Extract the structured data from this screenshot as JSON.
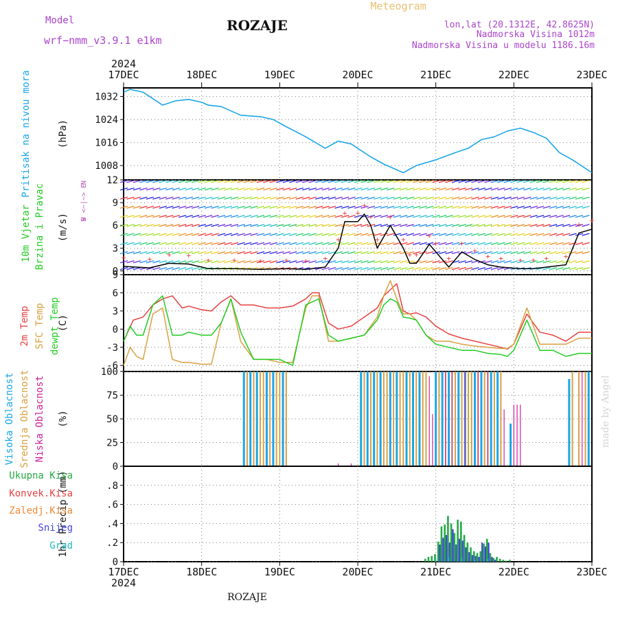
{
  "header": {
    "model_label": "Model",
    "model_name": "wrf−nmm_v3.9.1  e1km",
    "station": "ROZAJE",
    "meteogram_label": "Meteogram",
    "lonlat": "lon,lat (20.1312E, 42.8625N)",
    "elevation": "Nadmorska Visina 1012m",
    "model_elevation": "Nadmorska Visina u modelu 1186.16m"
  },
  "footer": {
    "station": "ROZAJE",
    "credit": "made by Angel"
  },
  "colors": {
    "pressure": "#1aa6e8",
    "wind_title": "#22cc22",
    "wind_dir": "#bb55bb",
    "temp_2m": "#e84040",
    "temp_sfc": "#d8a040",
    "dewpoint": "#22cc22",
    "cloud_high": "#1aa6e8",
    "cloud_mid": "#d8a040",
    "cloud_low": "#cc2299",
    "precip_total": "#22aa44",
    "precip_conv": "#e84040",
    "precip_frozen": "#ee8833",
    "precip_snow": "#4444dd",
    "precip_graupel": "#22bbbb",
    "header_model": "#aa44cc",
    "header_meteogram": "#e8c070"
  },
  "chart_data": [
    {
      "type": "line",
      "id": "pressure",
      "ylabel": "(hPa)",
      "yaxis_title": [
        "Pritisak na nivou mora"
      ],
      "ylim": [
        1003,
        1035
      ],
      "yticks": [
        1008,
        1016,
        1024,
        1032
      ],
      "x_range": [
        0,
        144
      ],
      "x": [
        0,
        2,
        6,
        12,
        16,
        20,
        24,
        26,
        30,
        36,
        42,
        46,
        50,
        56,
        62,
        66,
        70,
        76,
        80,
        86,
        90,
        96,
        102,
        106,
        110,
        114,
        118,
        122,
        126,
        130,
        134,
        138,
        144
      ],
      "values": [
        1033.5,
        1034.5,
        1033.5,
        1029.0,
        1030.5,
        1031.0,
        1030.0,
        1029.0,
        1028.5,
        1025.5,
        1025.0,
        1024.0,
        1021.5,
        1018.0,
        1014.0,
        1016.5,
        1015.5,
        1011.0,
        1008.5,
        1005.5,
        1008.0,
        1010.0,
        1012.5,
        1014.0,
        1017.0,
        1018.0,
        1020.0,
        1021.0,
        1019.5,
        1017.5,
        1012.5,
        1010.0,
        1005.5
      ]
    },
    {
      "type": "line",
      "id": "wind",
      "ylabel": "(m/s)",
      "yaxis_title": [
        "10m Vjetar",
        "Brzina i Pravac"
      ],
      "direction_legend": [
        "N",
        "W <−|−> E",
        "S"
      ],
      "ylim": [
        -0.5,
        12
      ],
      "yticks": [
        0,
        3,
        6,
        9,
        12
      ],
      "x_range": [
        0,
        144
      ],
      "series": [
        {
          "name": "",
          "x": [
            0,
            8,
            14,
            20,
            26,
            34,
            42,
            50,
            56,
            62,
            66,
            68,
            72,
            74,
            76,
            78,
            82,
            86,
            88,
            90,
            94,
            96,
            100,
            104,
            108,
            112,
            116,
            122,
            126,
            130,
            136,
            140,
            144
          ],
          "values": [
            0.6,
            0.4,
            1.0,
            0.9,
            0.3,
            0.3,
            0.2,
            0.3,
            0.2,
            0.5,
            3.0,
            6.5,
            6.5,
            7.5,
            6.0,
            3.0,
            6.0,
            3.0,
            1.0,
            1.0,
            3.5,
            2.5,
            0.5,
            2.5,
            1.5,
            0.8,
            0.5,
            0.3,
            0.3,
            0.5,
            0.8,
            5.0,
            5.5
          ]
        }
      ]
    },
    {
      "type": "line",
      "id": "temperature",
      "ylabel": "(C)",
      "yaxis_title": [
        "2m Temp",
        "SFC Temp",
        "dewpt Temp"
      ],
      "ylim": [
        -7,
        9
      ],
      "yticks": [
        -6,
        -3,
        0,
        3,
        6,
        9
      ],
      "x_range": [
        0,
        144
      ],
      "series": [
        {
          "name": "2m Temp",
          "x": [
            0,
            3,
            6,
            9,
            12,
            15,
            18,
            20,
            24,
            27,
            30,
            33,
            36,
            40,
            44,
            48,
            52,
            56,
            58,
            60,
            63,
            66,
            70,
            74,
            78,
            80,
            82,
            84,
            86,
            88,
            90,
            93,
            96,
            100,
            104,
            108,
            112,
            116,
            118,
            120,
            124,
            128,
            132,
            136,
            140,
            142,
            144
          ],
          "values": [
            -2,
            1.5,
            2.0,
            4.0,
            5.0,
            5.5,
            3.5,
            3.8,
            3.2,
            3.0,
            4.5,
            5.5,
            4.0,
            4.0,
            3.5,
            3.5,
            3.8,
            5.0,
            6.0,
            6.0,
            1.0,
            0.0,
            0.5,
            2.0,
            3.5,
            5.5,
            6.5,
            7.5,
            3.0,
            2.5,
            2.7,
            2.0,
            0.5,
            -0.8,
            -1.5,
            -2.0,
            -2.5,
            -3.0,
            -3.3,
            -2.5,
            2.5,
            -0.5,
            -1.0,
            -2.0,
            -0.5,
            -0.5,
            -0.5
          ]
        },
        {
          "name": "SFC Temp",
          "x": [
            0,
            2,
            4,
            6,
            9,
            12,
            15,
            18,
            20,
            24,
            27,
            30,
            33,
            36,
            40,
            44,
            48,
            52,
            56,
            58,
            60,
            63,
            66,
            70,
            74,
            78,
            80,
            82,
            84,
            86,
            88,
            90,
            93,
            96,
            100,
            104,
            108,
            112,
            116,
            118,
            120,
            124,
            128,
            132,
            136,
            140,
            142,
            144
          ],
          "values": [
            -6,
            -3.0,
            -4.5,
            -5.0,
            2.5,
            3.5,
            -5.0,
            -5.5,
            -5.5,
            -5.8,
            -5.8,
            1.0,
            5.0,
            -2.0,
            -5.0,
            -5.0,
            -5.5,
            -5.5,
            3.5,
            5.5,
            5.5,
            -2.0,
            -2.0,
            -1.5,
            -1.0,
            2.0,
            5.5,
            8.0,
            5.0,
            2.5,
            2.5,
            1.5,
            -1.0,
            -2.0,
            -2.0,
            -2.5,
            -2.8,
            -3.0,
            -3.2,
            -3.2,
            -2.5,
            3.5,
            -2.5,
            -2.5,
            -2.5,
            -1.5,
            -1.5,
            -1.5
          ]
        },
        {
          "name": "dewpt Temp",
          "x": [
            0,
            2,
            4,
            6,
            9,
            12,
            15,
            18,
            20,
            24,
            27,
            30,
            33,
            36,
            40,
            44,
            48,
            52,
            56,
            58,
            60,
            63,
            66,
            70,
            74,
            78,
            80,
            82,
            84,
            86,
            88,
            90,
            93,
            96,
            100,
            104,
            108,
            112,
            116,
            118,
            120,
            124,
            128,
            132,
            136,
            140,
            142,
            144
          ],
          "values": [
            -2,
            0.5,
            -1.0,
            -1.0,
            4.0,
            5.5,
            -1.0,
            -1.0,
            -0.5,
            -1.0,
            -1.0,
            1.0,
            5.0,
            -0.5,
            -5.0,
            -5.0,
            -5.0,
            -6.0,
            4.0,
            4.5,
            5.0,
            -1.0,
            -2.0,
            -1.5,
            -1.0,
            1.5,
            4.0,
            5.0,
            4.5,
            2.0,
            1.8,
            1.5,
            -1.0,
            -2.5,
            -3.0,
            -3.5,
            -3.5,
            -4.0,
            -4.2,
            -4.5,
            -3.5,
            1.5,
            -3.5,
            -3.5,
            -4.5,
            -4.0,
            -4.0,
            -4.0
          ]
        }
      ]
    },
    {
      "type": "bar",
      "id": "clouds",
      "ylabel": "(%)",
      "yaxis_title": [
        "Visoka Oblacnost",
        "Srednja Oblacnost",
        "Niska Oblacnost"
      ],
      "ylim": [
        0,
        100
      ],
      "yticks": [
        0,
        25,
        50,
        75,
        100
      ],
      "x_range": [
        0,
        144
      ],
      "series": [
        {
          "name": "Visoka Oblacnost",
          "x": [
            37,
            39,
            41,
            44,
            46,
            49,
            73,
            75,
            77,
            79,
            82,
            84,
            87,
            89,
            91,
            96,
            98,
            100,
            103,
            105,
            108,
            110,
            113,
            115,
            119,
            137,
            143
          ],
          "values": [
            100,
            100,
            100,
            100,
            100,
            100,
            100,
            100,
            100,
            100,
            100,
            100,
            100,
            100,
            100,
            100,
            100,
            100,
            100,
            100,
            100,
            100,
            100,
            100,
            45,
            92,
            100
          ]
        },
        {
          "name": "Srednja Oblacnost",
          "x": [
            38,
            40,
            42,
            43,
            45,
            47,
            48,
            50,
            74,
            76,
            78,
            80,
            81,
            83,
            85,
            86,
            88,
            90,
            92,
            93,
            97,
            99,
            101,
            102,
            104,
            106,
            107,
            109,
            111,
            112,
            114,
            116,
            138,
            140,
            142
          ],
          "values": [
            100,
            100,
            100,
            100,
            100,
            100,
            100,
            100,
            100,
            100,
            100,
            100,
            100,
            100,
            100,
            100,
            100,
            100,
            100,
            100,
            100,
            100,
            100,
            100,
            100,
            100,
            100,
            100,
            100,
            100,
            100,
            100,
            100,
            100,
            100
          ]
        },
        {
          "name": "Niska Oblacnost",
          "x": [
            66,
            70,
            94,
            95,
            99,
            101,
            105,
            109,
            112,
            117,
            120,
            121,
            122,
            141
          ],
          "values": [
            3,
            3,
            95,
            55,
            100,
            100,
            100,
            100,
            100,
            60,
            65,
            65,
            65,
            100
          ]
        }
      ]
    },
    {
      "type": "bar",
      "id": "precip",
      "ylabel": "1hr Precip (mm)",
      "yaxis_title": [
        "Ukupna Kisa",
        "Konvek.Kisa",
        "Zaledj.Kisa",
        "Snijeg",
        "Grad"
      ],
      "ylim": [
        0,
        1.0
      ],
      "yticks": [
        0,
        0.2,
        0.4,
        0.6,
        0.8
      ],
      "x_range": [
        0,
        144
      ],
      "series": [
        {
          "name": "Ukupna Kisa",
          "x": [
            93,
            94,
            95,
            96,
            97,
            98,
            99,
            100,
            101,
            102,
            103,
            104,
            105,
            106,
            107,
            108,
            109,
            110,
            111,
            112,
            113,
            114,
            115,
            116,
            117,
            118,
            119
          ],
          "values": [
            0.03,
            0.05,
            0.06,
            0.08,
            0.21,
            0.37,
            0.39,
            0.48,
            0.4,
            0.3,
            0.44,
            0.42,
            0.28,
            0.2,
            0.15,
            0.11,
            0.09,
            0.11,
            0.19,
            0.24,
            0.09,
            0.04,
            0.05,
            0.03,
            0.02,
            0.01,
            0.02
          ]
        },
        {
          "name": "Snijeg",
          "x": [
            97,
            98,
            99,
            100,
            101,
            102,
            103,
            104,
            105,
            106,
            107,
            108,
            109,
            110,
            111,
            112,
            113,
            114
          ],
          "values": [
            0.18,
            0.25,
            0.28,
            0.2,
            0.34,
            0.18,
            0.24,
            0.22,
            0.15,
            0.1,
            0.07,
            0.06,
            0.05,
            0.2,
            0.16,
            0.2,
            0.05,
            0.02
          ]
        },
        {
          "name": "Grad",
          "x": [
            96,
            100,
            104,
            108,
            112
          ],
          "values": [
            0.04,
            0.05,
            0.04,
            0.02,
            0.03
          ]
        }
      ]
    }
  ],
  "x_axis": {
    "ticks": [
      "17DEC",
      "18DEC",
      "19DEC",
      "20DEC",
      "21DEC",
      "22DEC",
      "23DEC"
    ],
    "year": "2024"
  }
}
